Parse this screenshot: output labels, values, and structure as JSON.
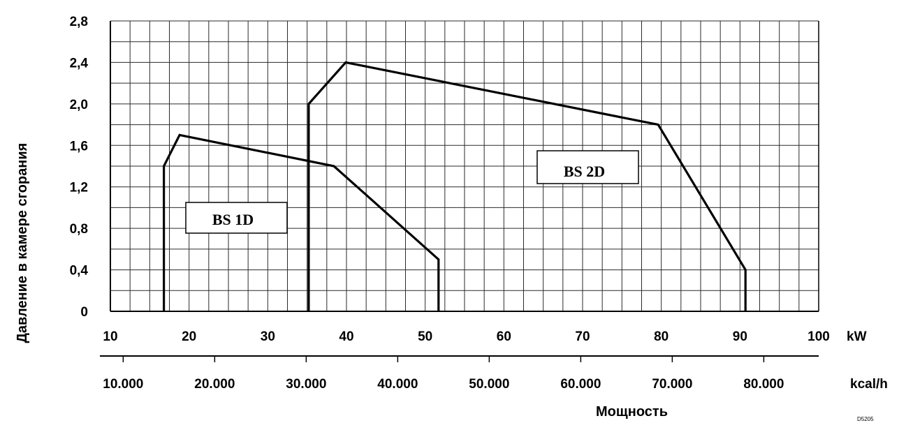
{
  "chart_data": {
    "type": "line",
    "xlabel": "Мощность",
    "ylabel": "Давление в камере сгорания",
    "x_unit_primary": "kW",
    "x_unit_secondary": "kcal/h",
    "xlim": [
      10,
      100
    ],
    "ylim": [
      0,
      2.8
    ],
    "grid": true,
    "x_ticks": [
      "10",
      "20",
      "30",
      "40",
      "50",
      "60",
      "70",
      "80",
      "90",
      "100"
    ],
    "y_ticks": [
      "0",
      "0,4",
      "0,8",
      "1,2",
      "1,6",
      "2,0",
      "2,4",
      "2,8"
    ],
    "kcal_ticks": [
      "10.000",
      "20.000",
      "30.000",
      "40.000",
      "50.000",
      "60.000",
      "70.000",
      "80.000"
    ],
    "series": [
      {
        "name": "BS 1D",
        "points": [
          [
            16.8,
            0
          ],
          [
            16.8,
            1.4
          ],
          [
            18.8,
            1.7
          ],
          [
            38.4,
            1.4
          ],
          [
            51.7,
            0.5
          ],
          [
            51.7,
            0
          ]
        ]
      },
      {
        "name": "BS 2D",
        "points": [
          [
            35.2,
            0
          ],
          [
            35.2,
            2.0
          ],
          [
            39.9,
            2.4
          ],
          [
            79.6,
            1.8
          ],
          [
            90.7,
            0.4
          ],
          [
            90.7,
            0
          ]
        ]
      }
    ],
    "corner_code": "D5205"
  }
}
